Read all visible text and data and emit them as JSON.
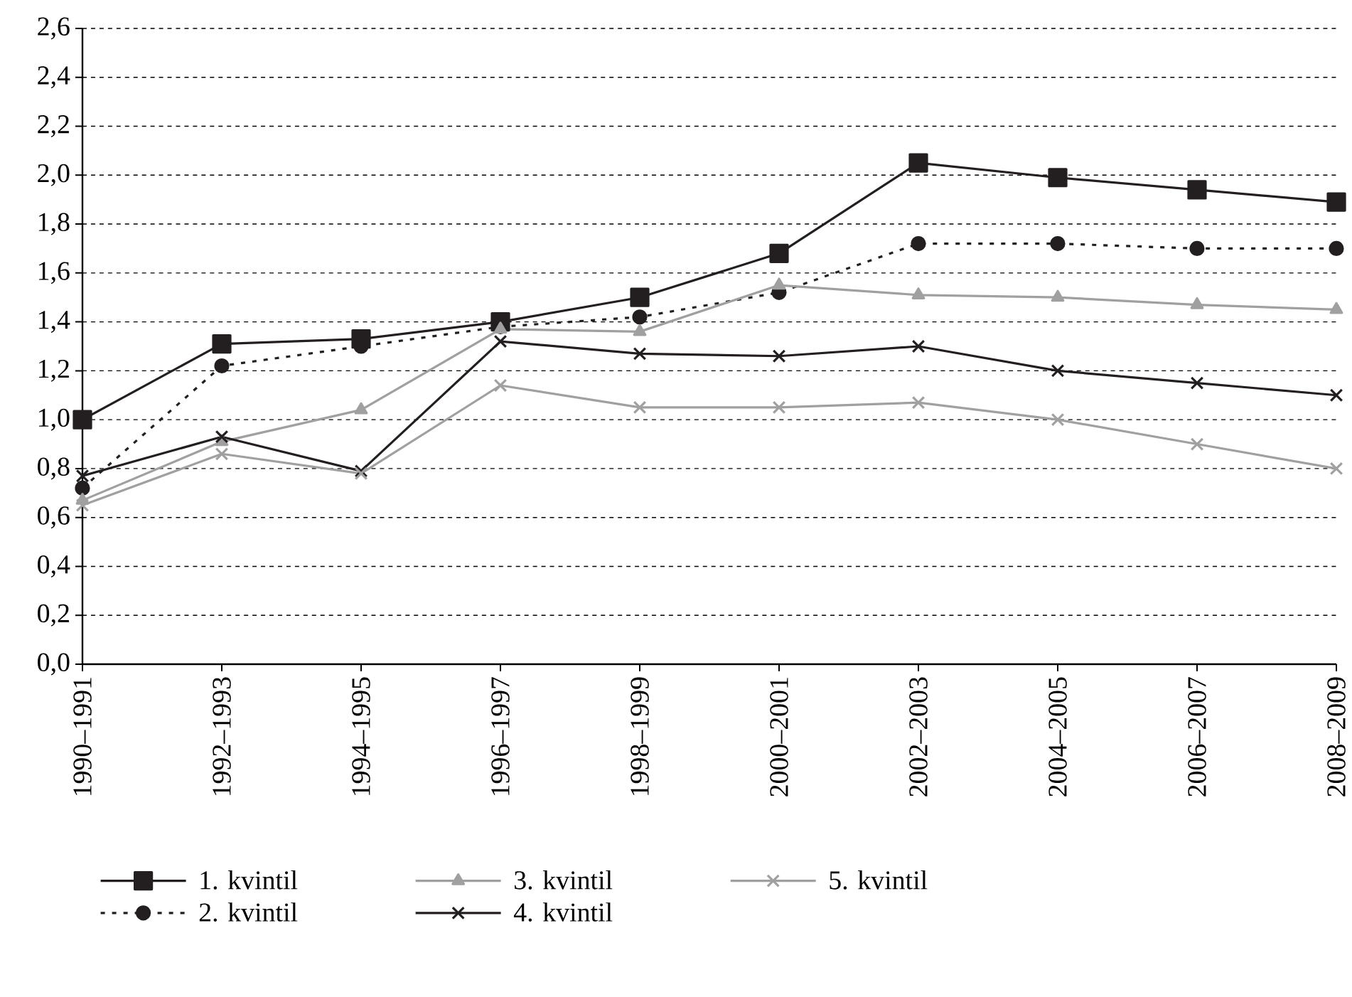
{
  "chart_data": {
    "type": "line",
    "categories": [
      "1990–1991",
      "1992–1993",
      "1994–1995",
      "1996–1997",
      "1998–1999",
      "2000–2001",
      "2002–2003",
      "2004–2005",
      "2006–2007",
      "2008–2009"
    ],
    "series": [
      {
        "name": "1. kvintil",
        "color": "#231f20",
        "marker": "square",
        "line_style": "solid",
        "values": [
          1.0,
          1.31,
          1.33,
          1.4,
          1.5,
          1.68,
          2.05,
          1.99,
          1.94,
          1.89
        ]
      },
      {
        "name": "2. kvintil",
        "color": "#231f20",
        "marker": "circle",
        "line_style": "dotted",
        "values": [
          0.72,
          1.22,
          1.3,
          1.38,
          1.42,
          1.52,
          1.72,
          1.72,
          1.7,
          1.7
        ]
      },
      {
        "name": "3. kvintil",
        "color": "#a0a0a0",
        "marker": "triangle",
        "line_style": "solid",
        "values": [
          0.67,
          0.91,
          1.04,
          1.37,
          1.36,
          1.55,
          1.51,
          1.5,
          1.47,
          1.45
        ]
      },
      {
        "name": "4. kvintil",
        "color": "#231f20",
        "marker": "cross",
        "line_style": "solid",
        "values": [
          0.77,
          0.93,
          0.79,
          1.32,
          1.27,
          1.26,
          1.3,
          1.2,
          1.15,
          1.1
        ]
      },
      {
        "name": "5. kvintil",
        "color": "#a0a0a0",
        "marker": "cross",
        "line_style": "solid",
        "values": [
          0.65,
          0.86,
          0.78,
          1.14,
          1.05,
          1.05,
          1.07,
          1.0,
          0.9,
          0.8
        ]
      }
    ],
    "ylim": [
      0,
      2.6
    ],
    "yticks": [
      {
        "value": 0,
        "label": "0,0"
      },
      {
        "value": 0.2,
        "label": "0,2"
      },
      {
        "value": 0.4,
        "label": "0,4"
      },
      {
        "value": 0.6,
        "label": "0,6"
      },
      {
        "value": 0.8,
        "label": "0,8"
      },
      {
        "value": 1.0,
        "label": "1,0"
      },
      {
        "value": 1.2,
        "label": "1,2"
      },
      {
        "value": 1.4,
        "label": "1,4"
      },
      {
        "value": 1.6,
        "label": "1,6"
      },
      {
        "value": 1.8,
        "label": "1,8"
      },
      {
        "value": 2.0,
        "label": "2,0"
      },
      {
        "value": 2.2,
        "label": "2,2"
      },
      {
        "value": 2.4,
        "label": "2,4"
      },
      {
        "value": 2.6,
        "label": "2,6"
      }
    ],
    "grid": "y",
    "legend": "bottom"
  }
}
